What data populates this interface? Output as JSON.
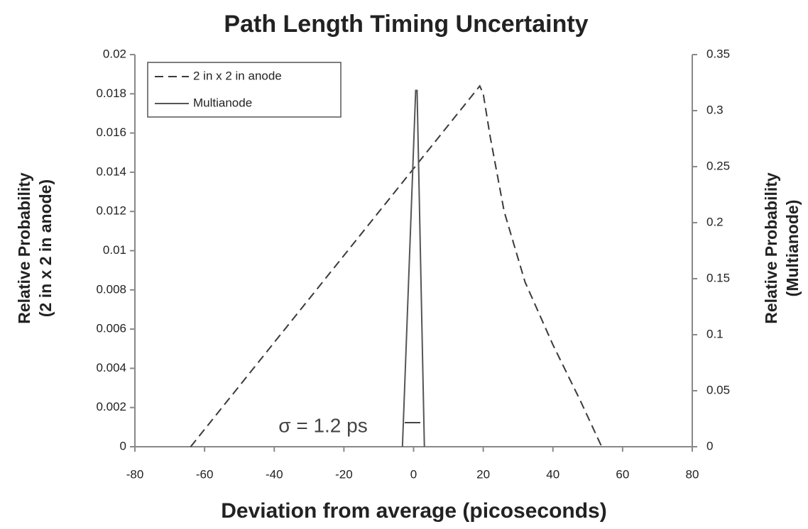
{
  "chart_data": {
    "type": "line",
    "title": "Path Length Timing Uncertainty",
    "x_label": "Deviation from average (picoseconds)",
    "y_label": [
      "Relative Probability",
      "(2 in x 2 in anode)"
    ],
    "y2_label": [
      "Relative Probability",
      "(Multianode)"
    ],
    "xlim": [
      -80,
      80
    ],
    "xticks": [
      -80,
      -60,
      -40,
      -20,
      0,
      20,
      40,
      60,
      80
    ],
    "ylim": [
      0,
      0.02
    ],
    "yticks": [
      0,
      0.002,
      0.004,
      0.006,
      0.008,
      0.01,
      0.012,
      0.014,
      0.016,
      0.018,
      0.02
    ],
    "y2lim": [
      0,
      0.35
    ],
    "y2ticks": [
      0,
      0.05,
      0.1,
      0.15,
      0.2,
      0.25,
      0.3,
      0.35
    ],
    "grid": false,
    "legend": "top-left",
    "annotation": "σ = 1.2 ps",
    "series": [
      {
        "name": "2 in x 2 in anode",
        "color": "#3a3a3a",
        "line_style": "dashed",
        "axis": "y",
        "x": [
          -64,
          19,
          20,
          22,
          26,
          32,
          40,
          48,
          54
        ],
        "values": [
          0,
          0.0184,
          0.018,
          0.0158,
          0.012,
          0.0084,
          0.0052,
          0.0023,
          0
        ]
      },
      {
        "name": "Multianode",
        "color": "#555555",
        "line_style": "solid",
        "axis": "y2",
        "x": [
          -3.2,
          0.6,
          1.0,
          3.1
        ],
        "values": [
          0,
          0.318,
          0.318,
          0
        ]
      }
    ]
  }
}
